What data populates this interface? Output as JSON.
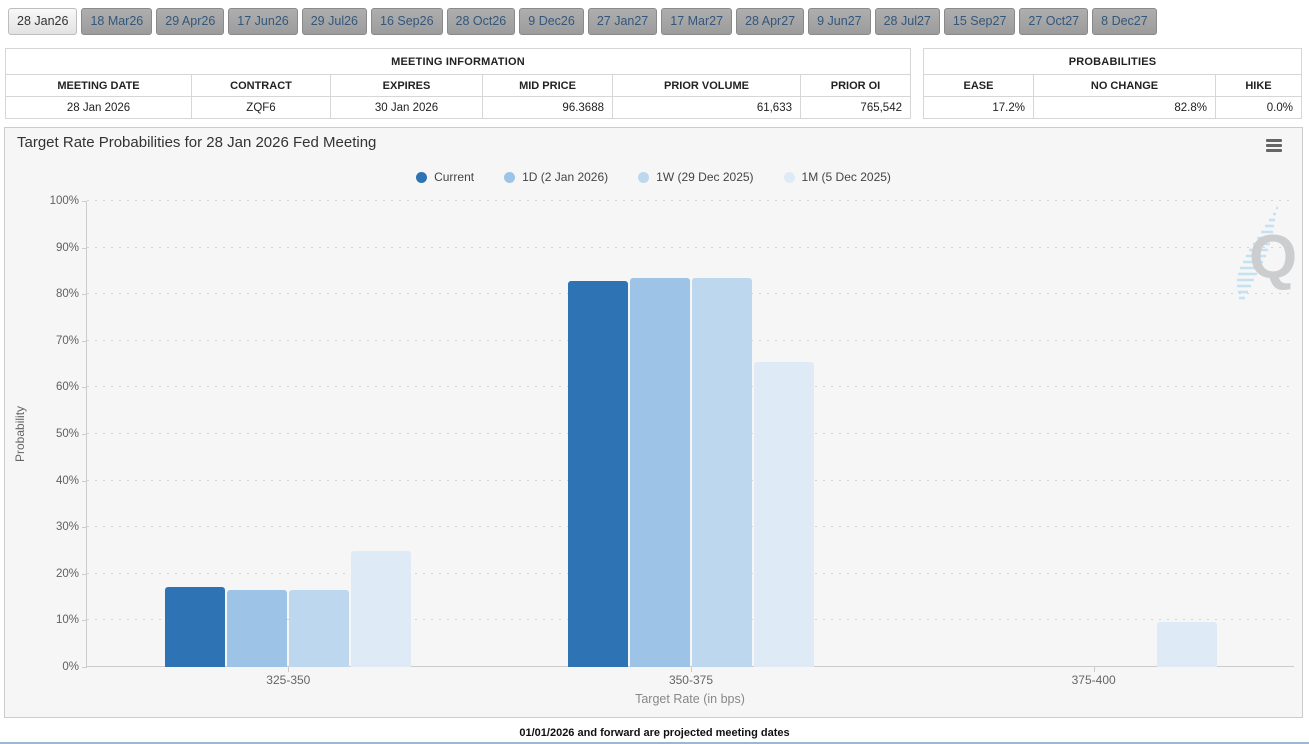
{
  "tabs": {
    "items": [
      {
        "label": "28 Jan26",
        "selected": true
      },
      {
        "label": "18 Mar26",
        "selected": false
      },
      {
        "label": "29 Apr26",
        "selected": false
      },
      {
        "label": "17 Jun26",
        "selected": false
      },
      {
        "label": "29 Jul26",
        "selected": false
      },
      {
        "label": "16 Sep26",
        "selected": false
      },
      {
        "label": "28 Oct26",
        "selected": false
      },
      {
        "label": "9 Dec26",
        "selected": false
      },
      {
        "label": "27 Jan27",
        "selected": false
      },
      {
        "label": "17 Mar27",
        "selected": false
      },
      {
        "label": "28 Apr27",
        "selected": false
      },
      {
        "label": "9 Jun27",
        "selected": false
      },
      {
        "label": "28 Jul27",
        "selected": false
      },
      {
        "label": "15 Sep27",
        "selected": false
      },
      {
        "label": "27 Oct27",
        "selected": false
      },
      {
        "label": "8 Dec27",
        "selected": false
      }
    ]
  },
  "meeting_info": {
    "title": "MEETING INFORMATION",
    "columns": [
      "MEETING DATE",
      "CONTRACT",
      "EXPIRES",
      "MID PRICE",
      "PRIOR VOLUME",
      "PRIOR OI"
    ],
    "row": [
      "28 Jan 2026",
      "ZQF6",
      "30 Jan 2026",
      "96.3688",
      "61,633",
      "765,542"
    ]
  },
  "probabilities": {
    "title": "PROBABILITIES",
    "columns": [
      "EASE",
      "NO CHANGE",
      "HIKE"
    ],
    "row": [
      "17.2%",
      "82.8%",
      "0.0%"
    ]
  },
  "chart": {
    "title": "Target Rate Probabilities for 28 Jan 2026 Fed Meeting",
    "menu_icon": "hamburger-menu-icon",
    "watermark_icon": "quikstrike-q-logo",
    "footer": "01/01/2026 and forward are projected meeting dates"
  },
  "chart_data": {
    "type": "bar",
    "title": "Target Rate Probabilities for 28 Jan 2026 Fed Meeting",
    "categories": [
      "325-350",
      "350-375",
      "375-400"
    ],
    "series": [
      {
        "name": "Current",
        "color": "#2e74b5",
        "values": [
          17.2,
          82.8,
          0.0
        ]
      },
      {
        "name": "1D (2 Jan 2026)",
        "color": "#9dc3e6",
        "values": [
          16.6,
          83.4,
          0.0
        ]
      },
      {
        "name": "1W (29 Dec 2025)",
        "color": "#bdd7ee",
        "values": [
          16.6,
          83.4,
          0.0
        ]
      },
      {
        "name": "1M (5 Dec 2025)",
        "color": "#deebf7",
        "values": [
          24.9,
          65.4,
          9.7
        ]
      }
    ],
    "xlabel": "Target Rate (in bps)",
    "ylabel": "Probability",
    "ylim": [
      0,
      100
    ],
    "ytick_step": 10,
    "ytick_suffix": "%",
    "grid": true,
    "legend_position": "top-center"
  },
  "colors": {
    "panel_background": "#f6f6f6",
    "grid_line": "#d4d4d4",
    "axis_line": "#cccccc",
    "bottom_rule": "#9bb7d4",
    "selected_tab_bg": "#ededed",
    "unselected_tab_bg": "#a5a5a5"
  }
}
